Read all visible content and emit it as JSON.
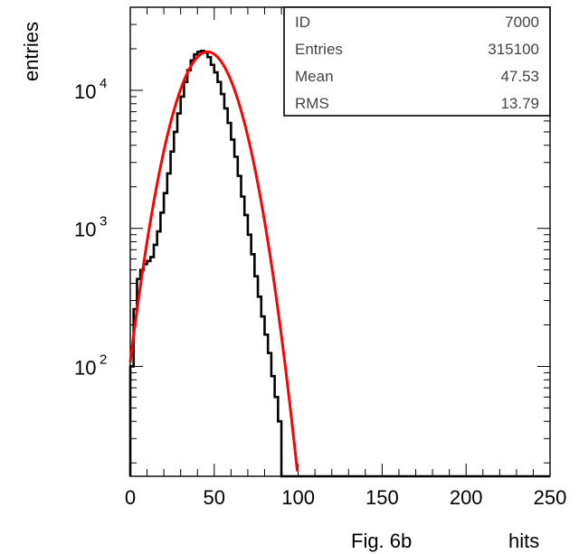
{
  "chart_data": {
    "type": "histogram",
    "xlabel": "hits",
    "ylabel": "entries",
    "caption": "Fig. 6b",
    "xlim": [
      0,
      250
    ],
    "ylim": [
      16,
      40000
    ],
    "y_scale": "log",
    "x_ticks": [
      "0",
      "50",
      "100",
      "150",
      "200",
      "250"
    ],
    "y_ticks": [
      {
        "base": "10",
        "exp": "2",
        "value": 100
      },
      {
        "base": "10",
        "exp": "3",
        "value": 1000
      },
      {
        "base": "10",
        "exp": "4",
        "value": 10000
      }
    ],
    "stats": [
      {
        "label": "ID",
        "value": "7000"
      },
      {
        "label": "Entries",
        "value": "315100"
      },
      {
        "label": "Mean",
        "value": "47.53"
      },
      {
        "label": "RMS",
        "value": "13.79"
      }
    ],
    "series": [
      {
        "kind": "histogram",
        "color": "#000000",
        "x": [
          0,
          2,
          4,
          6,
          8,
          10,
          12,
          14,
          16,
          18,
          20,
          22,
          24,
          26,
          28,
          30,
          32,
          34,
          36,
          38,
          40,
          42,
          44,
          46,
          48,
          50,
          52,
          54,
          56,
          58,
          60,
          62,
          64,
          66,
          68,
          70,
          72,
          74,
          76,
          78,
          80,
          82,
          84,
          86,
          88,
          90,
          92,
          94,
          96,
          98,
          100,
          102,
          104
        ],
        "y": [
          100,
          260,
          430,
          500,
          550,
          580,
          620,
          760,
          950,
          1300,
          1800,
          2500,
          3600,
          5000,
          6800,
          9000,
          11500,
          14000,
          16500,
          18200,
          19000,
          19300,
          18800,
          17400,
          15300,
          13500,
          11500,
          9400,
          7400,
          5800,
          4400,
          3300,
          2400,
          1700,
          1250,
          900,
          650,
          450,
          320,
          230,
          170,
          125,
          85,
          60,
          40,
          16,
          16,
          16,
          16,
          16,
          16,
          16,
          16
        ]
      },
      {
        "kind": "fit",
        "color": "#ff0000",
        "function": "gaussian",
        "amplitude": 19000,
        "mean": 46,
        "sigma": 14.3,
        "x_range": [
          0,
          100
        ]
      }
    ]
  }
}
